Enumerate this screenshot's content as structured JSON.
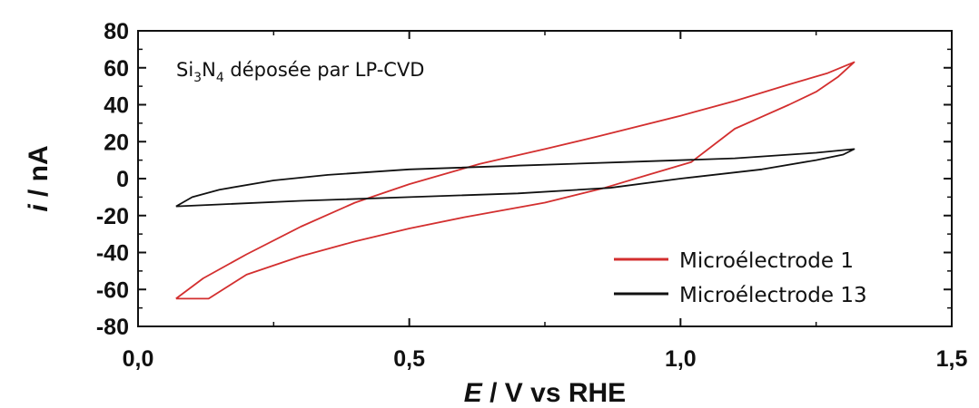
{
  "chart_data": {
    "type": "line",
    "xlabel": {
      "italic": "E",
      "rest": " / V vs RHE"
    },
    "ylabel": {
      "italic": "i",
      "rest": " / nA"
    },
    "xlim": [
      0.0,
      1.5
    ],
    "ylim": [
      -80,
      80
    ],
    "x_ticks": [
      0.0,
      0.5,
      1.0,
      1.5
    ],
    "x_tick_labels": [
      "0,0",
      "0,5",
      "1,0",
      "1,5"
    ],
    "y_ticks": [
      80,
      60,
      40,
      20,
      0,
      -20,
      -40,
      -60,
      -80
    ],
    "y_tick_labels": [
      "80",
      "60",
      "40",
      "20",
      "0",
      "-20",
      "-40",
      "-60",
      "-80"
    ],
    "annotation": {
      "base": "Si",
      "sub1": "3",
      "mid": "N",
      "sub2": "4",
      "rest": " déposée par LP-CVD"
    },
    "legend_position": "bottom-right",
    "grid": false,
    "series": [
      {
        "name": "Microélectrode 1",
        "color": "#d32f2f",
        "points": [
          [
            0.07,
            -65
          ],
          [
            0.12,
            -54
          ],
          [
            0.2,
            -41
          ],
          [
            0.3,
            -26
          ],
          [
            0.4,
            -13
          ],
          [
            0.5,
            -3
          ],
          [
            0.63,
            8
          ],
          [
            0.75,
            16
          ],
          [
            0.85,
            23
          ],
          [
            1.0,
            34
          ],
          [
            1.1,
            42
          ],
          [
            1.2,
            51
          ],
          [
            1.27,
            57
          ],
          [
            1.32,
            63
          ],
          [
            1.29,
            55
          ],
          [
            1.25,
            47
          ],
          [
            1.2,
            40
          ],
          [
            1.1,
            27
          ],
          [
            1.02,
            9
          ],
          [
            0.94,
            2
          ],
          [
            0.86,
            -5
          ],
          [
            0.75,
            -13
          ],
          [
            0.6,
            -21
          ],
          [
            0.5,
            -27
          ],
          [
            0.4,
            -34
          ],
          [
            0.3,
            -42
          ],
          [
            0.2,
            -52
          ],
          [
            0.13,
            -65
          ],
          [
            0.07,
            -65
          ]
        ]
      },
      {
        "name": "Microélectrode 13",
        "color": "#111111",
        "points": [
          [
            0.07,
            -15
          ],
          [
            0.1,
            -10
          ],
          [
            0.15,
            -6
          ],
          [
            0.25,
            -1
          ],
          [
            0.35,
            2
          ],
          [
            0.5,
            5
          ],
          [
            0.7,
            7
          ],
          [
            0.9,
            9
          ],
          [
            1.1,
            11
          ],
          [
            1.25,
            14
          ],
          [
            1.32,
            16
          ],
          [
            1.3,
            13
          ],
          [
            1.25,
            10
          ],
          [
            1.15,
            5
          ],
          [
            1.0,
            0
          ],
          [
            0.87,
            -5
          ],
          [
            0.7,
            -8
          ],
          [
            0.5,
            -10
          ],
          [
            0.3,
            -12
          ],
          [
            0.15,
            -14
          ],
          [
            0.07,
            -15
          ]
        ]
      }
    ]
  }
}
